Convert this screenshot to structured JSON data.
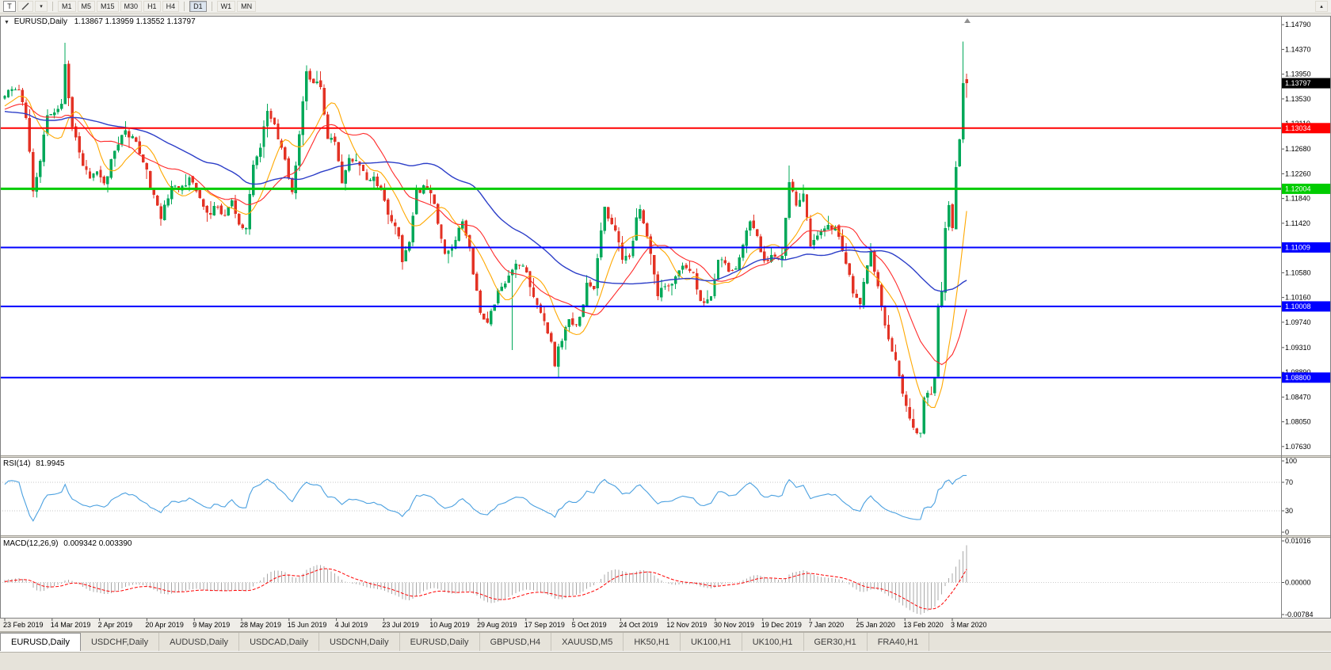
{
  "toolbar": {
    "tool_button_label": "T",
    "timeframes": [
      "M1",
      "M5",
      "M15",
      "M30",
      "H1",
      "H4",
      "D1",
      "W1",
      "MN"
    ],
    "active_timeframe": "D1"
  },
  "chart": {
    "symbol_title": "EURUSD,Daily",
    "ohlc_text": "1.13867 1.13959 1.13552 1.13797",
    "current_price": "1.13797",
    "price_top": 1.1494,
    "price_bottom": 1.0748,
    "y_ticks": [
      "1.14790",
      "1.14370",
      "1.13950",
      "1.13530",
      "1.13110",
      "1.12680",
      "1.12260",
      "1.11840",
      "1.11420",
      "1.11000",
      "1.10580",
      "1.10160",
      "1.09740",
      "1.09310",
      "1.08890",
      "1.08470",
      "1.08050",
      "1.07630"
    ],
    "horizontal_lines": [
      {
        "label": "1.13034",
        "value": 1.13034,
        "color": "#ff0000",
        "width": 2
      },
      {
        "label": "1.12004",
        "value": 1.12004,
        "color": "#00cc00",
        "width": 3
      },
      {
        "label": "1.11009",
        "value": 1.11009,
        "color": "#0000ff",
        "width": 2
      },
      {
        "label": "1.10008",
        "value": 1.10008,
        "color": "#0000ff",
        "width": 2
      },
      {
        "label": "1.08800",
        "value": 1.088,
        "color": "#0000ff",
        "width": 2
      }
    ],
    "colors": {
      "bull": "#00a859",
      "bear": "#e33224",
      "ma_fast": "#ffa800",
      "ma_mid": "#ff2a2a",
      "ma_slow": "#2c3ec8",
      "rsi": "#4aa0e0",
      "macd_hist": "#a8a8a8",
      "macd_signal": "#ff0000",
      "current_price_bg": "#000000"
    }
  },
  "indicators": {
    "rsi": {
      "name": "RSI(14)",
      "value": "81.9945",
      "scale": [
        "100",
        "70",
        "30",
        "0"
      ],
      "levels": [
        70,
        30
      ]
    },
    "macd": {
      "name": "MACD(12,26,9)",
      "value": "0.009342 0.003390",
      "scale": [
        "0.01016",
        "0.00000",
        "-0.00784"
      ]
    }
  },
  "x_axis": {
    "dates": [
      "23 Feb 2019",
      "14 Mar 2019",
      "2 Apr 2019",
      "20 Apr 2019",
      "9 May 2019",
      "28 May 2019",
      "15 Jun 2019",
      "4 Jul 2019",
      "23 Jul 2019",
      "10 Aug 2019",
      "29 Aug 2019",
      "17 Sep 2019",
      "5 Oct 2019",
      "24 Oct 2019",
      "12 Nov 2019",
      "30 Nov 2019",
      "19 Dec 2019",
      "7 Jan 2020",
      "25 Jan 2020",
      "13 Feb 2020",
      "3 Mar 2020"
    ]
  },
  "tabs": [
    "EURUSD,Daily",
    "USDCHF,Daily",
    "AUDUSD,Daily",
    "USDCAD,Daily",
    "USDCNH,Daily",
    "EURUSD,Daily",
    "GBPUSD,H4",
    "XAUUSD,M5",
    "HK50,H1",
    "UK100,H1",
    "UK100,H1",
    "GER30,H1",
    "FRA40,H1"
  ],
  "active_tab": 0,
  "chart_data": {
    "type": "candlestick",
    "symbol": "EURUSD",
    "timeframe": "Daily",
    "first_visible_date": "23 Feb 2019",
    "last_visible_date": "3 Mar 2020",
    "current_bar": {
      "open": 1.13867,
      "high": 1.13959,
      "low": 1.13552,
      "close": 1.13797
    },
    "close_anchors": [
      [
        -60,
        1.144
      ],
      [
        -50,
        1.1415
      ],
      [
        -40,
        1.1345
      ],
      [
        -30,
        1.129
      ],
      [
        -22,
        1.1305
      ],
      [
        -14,
        1.134
      ],
      [
        -8,
        1.133
      ],
      [
        -1,
        1.1352
      ],
      [
        0,
        1.1358
      ],
      [
        2,
        1.137
      ],
      [
        4,
        1.1368
      ],
      [
        6,
        1.1321
      ],
      [
        8,
        1.1196
      ],
      [
        10,
        1.1248
      ],
      [
        12,
        1.1325
      ],
      [
        14,
        1.133
      ],
      [
        16,
        1.1345
      ],
      [
        17,
        1.1412
      ],
      [
        19,
        1.1305
      ],
      [
        21,
        1.1262
      ],
      [
        24,
        1.1218
      ],
      [
        26,
        1.123
      ],
      [
        28,
        1.121
      ],
      [
        31,
        1.1265
      ],
      [
        34,
        1.13
      ],
      [
        37,
        1.128
      ],
      [
        39,
        1.1245
      ],
      [
        42,
        1.119
      ],
      [
        44,
        1.1149
      ],
      [
        47,
        1.1205
      ],
      [
        49,
        1.1198
      ],
      [
        52,
        1.122
      ],
      [
        55,
        1.1185
      ],
      [
        57,
        1.116
      ],
      [
        60,
        1.117
      ],
      [
        62,
        1.1155
      ],
      [
        64,
        1.1181
      ],
      [
        66,
        1.114
      ],
      [
        68,
        1.1134
      ],
      [
        70,
        1.1241
      ],
      [
        72,
        1.127
      ],
      [
        74,
        1.1333
      ],
      [
        76,
        1.131
      ],
      [
        78,
        1.127
      ],
      [
        80,
        1.1218
      ],
      [
        81,
        1.1195
      ],
      [
        83,
        1.1293
      ],
      [
        85,
        1.14
      ],
      [
        87,
        1.138
      ],
      [
        89,
        1.1373
      ],
      [
        91,
        1.1285
      ],
      [
        93,
        1.128
      ],
      [
        95,
        1.121
      ],
      [
        97,
        1.1253
      ],
      [
        100,
        1.124
      ],
      [
        102,
        1.1215
      ],
      [
        104,
        1.1221
      ],
      [
        107,
        1.118
      ],
      [
        109,
        1.1145
      ],
      [
        111,
        1.112
      ],
      [
        112,
        1.1076
      ],
      [
        114,
        1.111
      ],
      [
        116,
        1.12
      ],
      [
        119,
        1.12
      ],
      [
        121,
        1.1175
      ],
      [
        124,
        1.109
      ],
      [
        126,
        1.11
      ],
      [
        129,
        1.1145
      ],
      [
        131,
        1.11
      ],
      [
        134,
        1.099
      ],
      [
        136,
        1.0973
      ],
      [
        139,
        1.1028
      ],
      [
        141,
        1.104
      ],
      [
        143,
        1.1063
      ],
      [
        144,
        1.1073
      ],
      [
        146,
        1.107
      ],
      [
        149,
        1.1017
      ],
      [
        151,
        1.099
      ],
      [
        154,
        1.0941
      ],
      [
        155,
        1.0899
      ],
      [
        156,
        1.0933
      ],
      [
        159,
        1.0979
      ],
      [
        161,
        1.097
      ],
      [
        163,
        1.1004
      ],
      [
        164,
        1.1041
      ],
      [
        166,
        1.103
      ],
      [
        169,
        1.117
      ],
      [
        170,
        1.115
      ],
      [
        172,
        1.113
      ],
      [
        174,
        1.108
      ],
      [
        176,
        1.1085
      ],
      [
        178,
        1.1152
      ],
      [
        179,
        1.1166
      ],
      [
        181,
        1.112
      ],
      [
        184,
        1.1018
      ],
      [
        186,
        1.1035
      ],
      [
        189,
        1.1052
      ],
      [
        191,
        1.107
      ],
      [
        194,
        1.1058
      ],
      [
        196,
        1.101
      ],
      [
        199,
        1.1018
      ],
      [
        201,
        1.108
      ],
      [
        204,
        1.106
      ],
      [
        206,
        1.1065
      ],
      [
        209,
        1.113
      ],
      [
        210,
        1.1145
      ],
      [
        212,
        1.112
      ],
      [
        214,
        1.1078
      ],
      [
        216,
        1.1088
      ],
      [
        219,
        1.1087
      ],
      [
        221,
        1.1212
      ],
      [
        223,
        1.1172
      ],
      [
        225,
        1.1192
      ],
      [
        227,
        1.1103
      ],
      [
        229,
        1.1121
      ],
      [
        231,
        1.1133
      ],
      [
        234,
        1.1136
      ],
      [
        236,
        1.1095
      ],
      [
        239,
        1.1023
      ],
      [
        241,
        1.1005
      ],
      [
        244,
        1.1094
      ],
      [
        245,
        1.106
      ],
      [
        247,
        1.1
      ],
      [
        249,
        1.0945
      ],
      [
        251,
        1.091
      ],
      [
        254,
        1.0832
      ],
      [
        256,
        1.0795
      ],
      [
        258,
        1.0786
      ],
      [
        259,
        1.0846
      ],
      [
        260,
        1.0854
      ],
      [
        261,
        1.0852
      ],
      [
        262,
        1.088
      ],
      [
        263,
        1.1
      ],
      [
        264,
        1.1026
      ],
      [
        265,
        1.1134
      ],
      [
        266,
        1.1173
      ],
      [
        267,
        1.1134
      ],
      [
        268,
        1.1237
      ],
      [
        269,
        1.1284
      ],
      [
        270,
        1.138
      ],
      [
        271,
        1.13797
      ]
    ],
    "special_bars": {
      "17": {
        "high": 1.1448
      },
      "143": {
        "low": 1.0927
      },
      "156": {
        "low": 1.0879
      },
      "221": {
        "high": 1.124
      },
      "258": {
        "low": 1.0778
      },
      "270": {
        "open": 1.1284,
        "high": 1.145,
        "low": 1.1278,
        "close": 1.138
      },
      "271": {
        "open": 1.13867,
        "high": 1.13959,
        "low": 1.13552,
        "close": 1.13797
      }
    },
    "moving_averages": [
      {
        "name": "ma-fast",
        "period": 10,
        "color_key": "ma_fast",
        "width": 1.1
      },
      {
        "name": "ma-mid",
        "period": 20,
        "color_key": "ma_mid",
        "width": 1.1
      },
      {
        "name": "ma-slow",
        "period": 50,
        "color_key": "ma_slow",
        "width": 1.4
      }
    ]
  }
}
